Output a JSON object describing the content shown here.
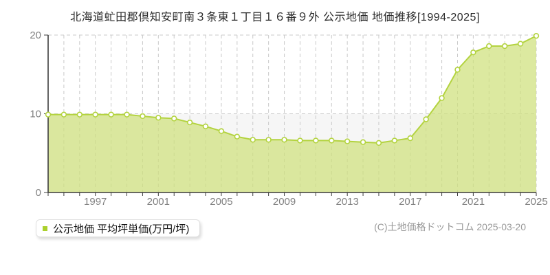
{
  "title": "北海道虻田郡倶知安町南３条東１丁目１６番９外 公示地価 地価推移[1994-2025]",
  "legend": {
    "label": "公示地価 平均坪単価(万円/坪)",
    "marker_color": "#abd02c"
  },
  "footer": {
    "copyright": "(C)土地価格ドットコム 2025-03-20"
  },
  "chart_data": {
    "type": "area",
    "title": "北海道虻田郡倶知安町南３条東１丁目１６番９外 公示地価 地価推移[1994-2025]",
    "series": [
      {
        "name": "公示地価 平均坪単価(万円/坪)",
        "values": [
          9.9,
          9.9,
          9.9,
          9.9,
          9.9,
          9.9,
          9.7,
          9.5,
          9.4,
          8.9,
          8.4,
          7.8,
          7.1,
          6.7,
          6.7,
          6.7,
          6.6,
          6.6,
          6.6,
          6.5,
          6.4,
          6.3,
          6.6,
          6.9,
          9.3,
          12.0,
          15.6,
          17.8,
          18.6,
          18.6,
          18.9,
          19.9
        ]
      }
    ],
    "x": [
      1994,
      1995,
      1996,
      1997,
      1998,
      1999,
      2000,
      2001,
      2002,
      2003,
      2004,
      2005,
      2006,
      2007,
      2008,
      2009,
      2010,
      2011,
      2012,
      2013,
      2014,
      2015,
      2016,
      2017,
      2018,
      2019,
      2020,
      2021,
      2022,
      2023,
      2024,
      2025
    ],
    "xlabel": "",
    "ylabel": "平均坪単価(万円/坪)",
    "ylim": [
      0,
      20
    ],
    "yticks": [
      0,
      10,
      20
    ],
    "xtick_labels": [
      1997,
      2001,
      2005,
      2009,
      2013,
      2017,
      2021,
      2025
    ],
    "shaded_band": [
      0,
      10
    ],
    "grid": "dashed, vertical per year, horizontal at yticks",
    "legend_position": "bottom-left",
    "colors": {
      "area_fill": "#cee07b",
      "area_opacity": 0.72,
      "line": "#b3d33f",
      "marker_fill": "#ffffff",
      "grid": "#c9c9c9",
      "band": "#f6f6f6",
      "axis": "#3c3c3c",
      "tick_label": "#808080"
    }
  }
}
